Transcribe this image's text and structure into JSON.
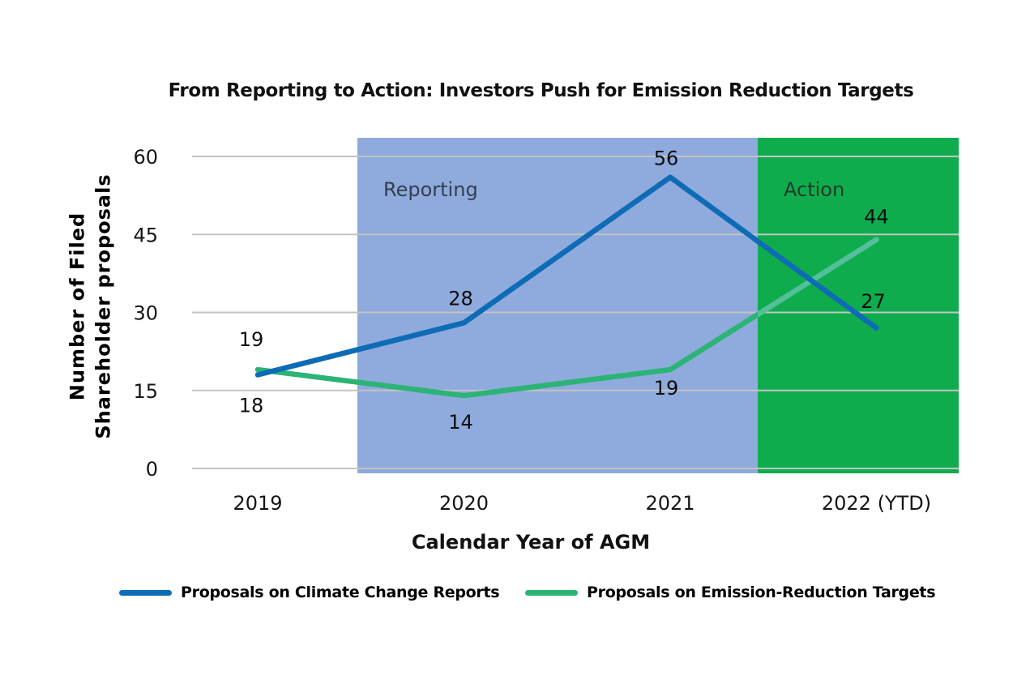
{
  "chart_data": {
    "type": "line",
    "title": "From Reporting to Action: Investors Push for Emission Reduction Targets",
    "xlabel": "Calendar Year of AGM",
    "ylabel_lines": [
      "Number of Filed",
      "Shareholder proposals"
    ],
    "categories": [
      "2019",
      "2020",
      "2021",
      "2022 (YTD)"
    ],
    "y_ticks": [
      0,
      15,
      30,
      45,
      60
    ],
    "ylim": [
      0,
      60
    ],
    "grid": true,
    "gridline_color": "#c3c3c3",
    "text_color": "#161616",
    "series": [
      {
        "name": "Proposals on Climate Change Reports",
        "color": "#0e6cb6",
        "values": [
          18,
          28,
          56,
          27
        ],
        "label_offsets": [
          [
            -8,
            46
          ],
          [
            -4,
            -22
          ],
          [
            -5,
            -15
          ],
          [
            -4,
            -25
          ]
        ]
      },
      {
        "name": "Proposals on Emission-Reduction Targets",
        "color": "#2bb475",
        "overlay_color": "#53c09a",
        "values": [
          19,
          14,
          19,
          44
        ],
        "label_offsets": [
          [
            -8,
            -29
          ],
          [
            -4,
            41
          ],
          [
            -5,
            31
          ],
          [
            0,
            -20
          ]
        ]
      }
    ],
    "regions": [
      {
        "label": "Reporting",
        "fill": "#8faadc",
        "label_color": "#333f50",
        "x_from": 441,
        "x_to": 935
      },
      {
        "label": "Action",
        "fill": "#0fac4e",
        "label_color": "#1c3b28",
        "x_from": 935,
        "x_to": 1183
      }
    ],
    "legend": {
      "position": "bottom",
      "items": [
        {
          "label": "Proposals on Climate Change Reports"
        },
        {
          "label": "Proposals on Emission-Reduction Targets"
        }
      ]
    },
    "layout": {
      "plot_x0": 237,
      "plot_x1": 1183,
      "y_bottom": 578,
      "y_top": 193,
      "region_top": 170,
      "region_bottom": 584,
      "x_points": [
        318,
        572.5,
        827,
        1081.5
      ],
      "x_tick_baseline": 629,
      "region_label_baseline": 242,
      "line_width": 6.5
    }
  }
}
